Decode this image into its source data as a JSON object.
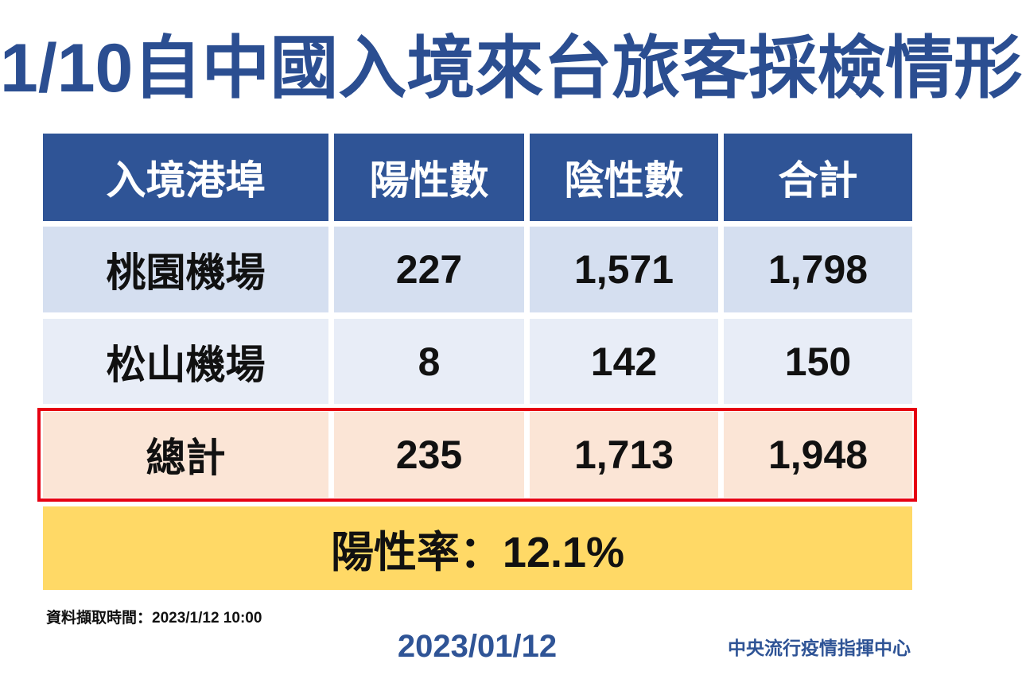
{
  "colors": {
    "title": "#2b4e91",
    "header-bg": "#2f5496",
    "header-text": "#ffffff",
    "row-a-bg": "#d5dff0",
    "row-b-bg": "#e8edf7",
    "total-bg": "#fbe5d6",
    "rate-bg": "#ffd966",
    "highlight": "#e60012",
    "body-text": "#111111",
    "footer-blue": "#2f5496"
  },
  "chart_data": {
    "type": "table",
    "title": "1/10自中國入境來台旅客採檢情形",
    "columns": [
      "入境港埠",
      "陽性數",
      "陰性數",
      "合計"
    ],
    "rows": [
      [
        "桃園機場",
        "227",
        "1,571",
        "1,798"
      ],
      [
        "松山機場",
        "8",
        "142",
        "150"
      ],
      [
        "總計",
        "235",
        "1,713",
        "1,948"
      ]
    ],
    "summary": "陽性率：12.1%"
  },
  "footer": {
    "data_time": "資料擷取時間：2023/1/12 10:00",
    "date": "2023/01/12",
    "source": "中央流行疫情指揮中心"
  }
}
